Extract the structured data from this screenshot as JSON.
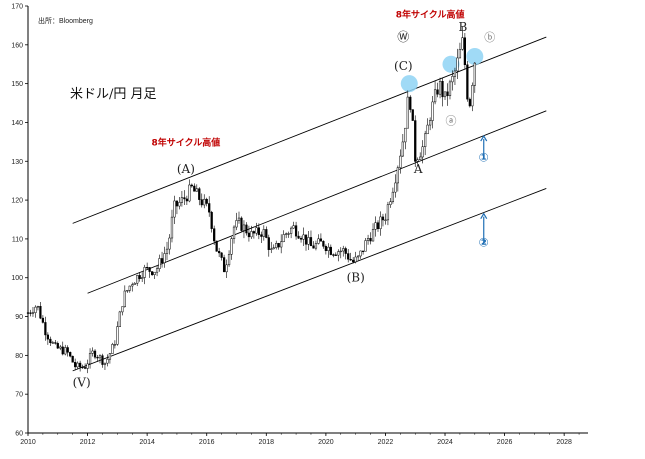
{
  "chart_data": {
    "type": "candlestick",
    "source": "出所：Bloomberg",
    "title": "米ドル/円 月足",
    "x_ticks": [
      "2010",
      "2012",
      "2014",
      "2016",
      "2018",
      "2020",
      "2022",
      "2024",
      "2026",
      "2028"
    ],
    "x_range": [
      2010,
      2028.8
    ],
    "y_ticks": [
      60,
      70,
      80,
      90,
      100,
      110,
      120,
      130,
      140,
      150,
      160,
      170
    ],
    "y_range": [
      60,
      170
    ],
    "series_points": [
      [
        2010.0,
        91
      ],
      [
        2010.3,
        93
      ],
      [
        2010.6,
        86
      ],
      [
        2010.9,
        82
      ],
      [
        2011.3,
        81
      ],
      [
        2011.6,
        77
      ],
      [
        2011.9,
        77
      ],
      [
        2012.2,
        81
      ],
      [
        2012.6,
        78
      ],
      [
        2012.9,
        83
      ],
      [
        2013.2,
        95
      ],
      [
        2013.5,
        99
      ],
      [
        2013.9,
        102
      ],
      [
        2014.3,
        102
      ],
      [
        2014.7,
        108
      ],
      [
        2014.9,
        118
      ],
      [
        2015.2,
        120
      ],
      [
        2015.5,
        123
      ],
      [
        2015.8,
        120
      ],
      [
        2016.1,
        117
      ],
      [
        2016.3,
        108
      ],
      [
        2016.6,
        102
      ],
      [
        2016.9,
        113
      ],
      [
        2017.1,
        114
      ],
      [
        2017.5,
        111
      ],
      [
        2017.9,
        112
      ],
      [
        2018.2,
        106
      ],
      [
        2018.6,
        111
      ],
      [
        2018.9,
        113
      ],
      [
        2019.2,
        111
      ],
      [
        2019.5,
        108
      ],
      [
        2019.9,
        109
      ],
      [
        2020.2,
        107
      ],
      [
        2020.6,
        107
      ],
      [
        2020.9,
        104
      ],
      [
        2021.1,
        105
      ],
      [
        2021.4,
        110
      ],
      [
        2021.8,
        114
      ],
      [
        2022.0,
        116
      ],
      [
        2022.3,
        125
      ],
      [
        2022.6,
        136
      ],
      [
        2022.8,
        148
      ],
      [
        2022.9,
        140
      ],
      [
        2023.0,
        131
      ],
      [
        2023.3,
        134
      ],
      [
        2023.5,
        142
      ],
      [
        2023.8,
        150
      ],
      [
        2024.0,
        146
      ],
      [
        2024.3,
        152
      ],
      [
        2024.5,
        158
      ],
      [
        2024.6,
        161
      ],
      [
        2024.8,
        143
      ],
      [
        2024.9,
        150
      ],
      [
        2025.0,
        156
      ]
    ],
    "channel_lines": [
      {
        "start": [
          2011.5,
          114
        ],
        "end": [
          2027.4,
          162
        ]
      },
      {
        "start": [
          2012.0,
          96
        ],
        "end": [
          2027.4,
          143
        ]
      },
      {
        "start": [
          2011.5,
          76
        ],
        "end": [
          2027.4,
          123
        ]
      }
    ],
    "highlight_circles": [
      [
        2022.8,
        150
      ],
      [
        2024.2,
        155
      ],
      [
        2025.0,
        157
      ]
    ],
    "annotations": [
      {
        "text": "(A)",
        "x": 2015.3,
        "y": 127,
        "style": "lbl"
      },
      {
        "text": "(B)",
        "x": 2021.0,
        "y": 99,
        "style": "lbl"
      },
      {
        "text": "(V)",
        "x": 2011.8,
        "y": 72,
        "style": "lbl"
      },
      {
        "text": "(C)",
        "x": 2022.6,
        "y": 153.5,
        "style": "lbl"
      },
      {
        "text": "Ⓦ",
        "x": 2022.6,
        "y": 161,
        "style": "lbl"
      },
      {
        "text": "B",
        "x": 2024.6,
        "y": 163.5,
        "style": "lbl"
      },
      {
        "text": "A",
        "x": 2023.1,
        "y": 127,
        "style": "lbl"
      },
      {
        "text": "ⓐ",
        "x": 2024.2,
        "y": 139.5,
        "style": "grey"
      },
      {
        "text": "ⓑ",
        "x": 2025.5,
        "y": 161,
        "style": "grey"
      },
      {
        "text": "8年サイクル高値",
        "x": 2015.3,
        "y": 134,
        "style": "red"
      },
      {
        "text": "8年サイクル高値",
        "x": 2023.5,
        "y": 167,
        "style": "red"
      },
      {
        "text": "①",
        "x": 2025.3,
        "y": 130,
        "style": "blue"
      },
      {
        "text": "②",
        "x": 2025.3,
        "y": 108,
        "style": "blue"
      }
    ],
    "arrows": [
      {
        "from": [
          2025.3,
          131
        ],
        "to": [
          2025.3,
          136.5
        ]
      },
      {
        "from": [
          2025.3,
          109
        ],
        "to": [
          2025.3,
          116.5
        ]
      }
    ]
  }
}
